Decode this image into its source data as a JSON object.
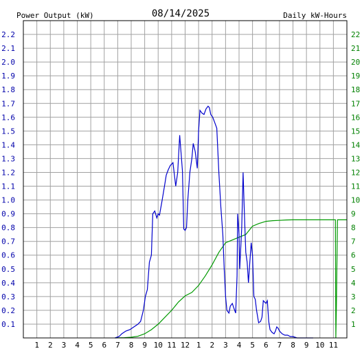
{
  "header": {
    "left_axis_title": "Power Output (kW)",
    "date": "08/14/2025",
    "right_axis_title": "Daily kW-Hours"
  },
  "colors": {
    "background": "#ffffff",
    "grid": "#a0a0a0",
    "left_axis": "#0000aa",
    "right_axis": "#008000",
    "power_series": "#0000cc",
    "energy_series": "#009900",
    "date_text": "#000000"
  },
  "chart_data": {
    "type": "line",
    "x_ticks": [
      "1",
      "2",
      "3",
      "4",
      "5",
      "6",
      "7",
      "8",
      "9",
      "10",
      "11",
      "12",
      "1",
      "2",
      "3",
      "4",
      "5",
      "6",
      "7",
      "8",
      "9",
      "10",
      "11"
    ],
    "y_left_ticks": [
      "0.1",
      "0.2",
      "0.3",
      "0.4",
      "0.5",
      "0.6",
      "0.7",
      "0.8",
      "0.9",
      "1.0",
      "1.1",
      "1.2",
      "1.3",
      "1.4",
      "1.5",
      "1.6",
      "1.7",
      "1.8",
      "1.9",
      "2.0",
      "2.1",
      "2.2"
    ],
    "y_right_ticks": [
      "1",
      "2",
      "3",
      "4",
      "5",
      "6",
      "7",
      "8",
      "9",
      "10",
      "11",
      "12",
      "13",
      "14",
      "15",
      "16",
      "17",
      "18",
      "19",
      "20",
      "21",
      "22"
    ],
    "ylim_left": [
      0,
      2.3
    ],
    "ylim_right": [
      0,
      23
    ],
    "xlim_hours": [
      0,
      24
    ],
    "grid": true,
    "series": [
      {
        "axis": "left",
        "x_hours": [
          6.8,
          7.1,
          7.3,
          7.6,
          7.9,
          8.2,
          8.5,
          8.7,
          8.9,
          9.05,
          9.2,
          9.35,
          9.5,
          9.6,
          9.75,
          9.9,
          10.0,
          10.1,
          10.3,
          10.5,
          10.6,
          10.75,
          10.9,
          11.1,
          11.3,
          11.45,
          11.6,
          11.8,
          11.9,
          12.0,
          12.1,
          12.2,
          12.35,
          12.5,
          12.6,
          12.75,
          12.9,
          13.0,
          13.1,
          13.25,
          13.4,
          13.55,
          13.7,
          13.8,
          13.9,
          14.05,
          14.2,
          14.35,
          14.5,
          14.65,
          14.8,
          14.9,
          15.0,
          15.1,
          15.25,
          15.35,
          15.5,
          15.6,
          15.75,
          15.85,
          15.9,
          16.0,
          16.05,
          16.2,
          16.3,
          16.4,
          16.5,
          16.6,
          16.7,
          16.8,
          16.9,
          17.0,
          17.1,
          17.2,
          17.3,
          17.45,
          17.6,
          17.7,
          17.8,
          17.9,
          18.0,
          18.1,
          18.2,
          18.3,
          18.45,
          18.6,
          18.7,
          18.8,
          18.9,
          19.0,
          19.2,
          19.4,
          19.6,
          19.8,
          20.0,
          20.3,
          20.6,
          20.9,
          21.2,
          21.5
        ],
        "values": [
          0.0,
          0.01,
          0.03,
          0.05,
          0.06,
          0.08,
          0.1,
          0.12,
          0.2,
          0.3,
          0.35,
          0.55,
          0.6,
          0.9,
          0.92,
          0.87,
          0.9,
          0.89,
          1.0,
          1.12,
          1.18,
          1.22,
          1.25,
          1.27,
          1.1,
          1.2,
          1.47,
          1.21,
          0.79,
          0.78,
          0.8,
          1.0,
          1.2,
          1.3,
          1.41,
          1.35,
          1.23,
          1.5,
          1.65,
          1.63,
          1.62,
          1.66,
          1.68,
          1.67,
          1.62,
          1.6,
          1.56,
          1.52,
          1.2,
          0.95,
          0.75,
          0.5,
          0.3,
          0.2,
          0.18,
          0.23,
          0.25,
          0.22,
          0.18,
          0.45,
          0.9,
          0.75,
          0.5,
          0.8,
          1.2,
          0.9,
          0.62,
          0.55,
          0.4,
          0.55,
          0.69,
          0.6,
          0.3,
          0.28,
          0.2,
          0.11,
          0.12,
          0.15,
          0.27,
          0.26,
          0.25,
          0.27,
          0.12,
          0.06,
          0.04,
          0.03,
          0.05,
          0.08,
          0.07,
          0.05,
          0.03,
          0.02,
          0.02,
          0.01,
          0.01,
          0.0,
          0.0,
          0.0,
          0.0,
          0.0
        ]
      },
      {
        "axis": "right",
        "x_hours": [
          6.8,
          7.5,
          8.0,
          8.5,
          9.0,
          9.5,
          10.0,
          10.5,
          11.0,
          11.5,
          12.0,
          12.5,
          13.0,
          13.5,
          14.0,
          14.5,
          15.0,
          15.5,
          16.0,
          16.5,
          17.0,
          17.5,
          18.0,
          18.5,
          19.0,
          19.5,
          20.0,
          21.0,
          22.0,
          23.0,
          23.15,
          23.18,
          23.22,
          23.3,
          23.5,
          24.0
        ],
        "values": [
          0.0,
          0.02,
          0.05,
          0.12,
          0.3,
          0.6,
          1.0,
          1.5,
          2.0,
          2.6,
          3.05,
          3.3,
          3.8,
          4.5,
          5.3,
          6.2,
          6.9,
          7.1,
          7.3,
          7.5,
          8.1,
          8.3,
          8.45,
          8.5,
          8.52,
          8.55,
          8.56,
          8.56,
          8.56,
          8.56,
          8.56,
          0.0,
          2.2,
          8.56,
          8.56,
          8.56
        ]
      }
    ]
  }
}
